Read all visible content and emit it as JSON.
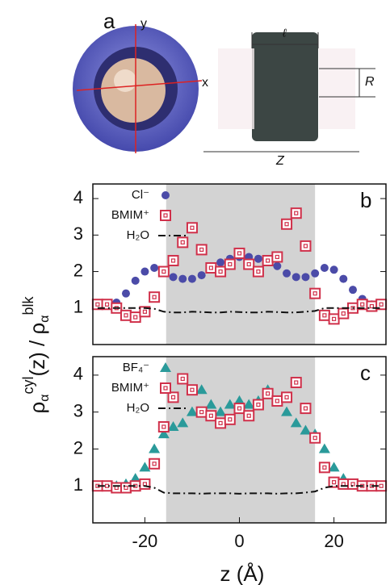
{
  "panel_a": {
    "label": "a",
    "axis_y": "y",
    "axis_x": "x",
    "length": "ℓ",
    "radius": "R",
    "box": "Z"
  },
  "figure": {
    "x_label": "z (Å)",
    "y_label_parts": [
      "ρ",
      "α",
      "cyl",
      "(z) / ",
      "ρ",
      "α",
      "blk"
    ]
  },
  "chart_data": [
    {
      "type": "scatter",
      "panel_label": "b",
      "x": [
        -30,
        -28,
        -26,
        -24,
        -22,
        -20,
        -18,
        -16,
        -14,
        -12,
        -10,
        -8,
        -6,
        -4,
        -2,
        0,
        2,
        4,
        6,
        8,
        10,
        12,
        14,
        16,
        18,
        20,
        22,
        24,
        26,
        28,
        30
      ],
      "xlim": [
        -31,
        31
      ],
      "ylim": [
        0,
        4.4
      ],
      "yticks": [
        1,
        2,
        3,
        4
      ],
      "shade": [
        -15.5,
        16
      ],
      "shade_color": "#d3d3d3",
      "series": [
        {
          "name": "Cl⁻",
          "color": "#4b4ba8",
          "marker": "circle",
          "values": [
            1.1,
            1.1,
            1.15,
            1.4,
            1.75,
            2.0,
            2.1,
            2.0,
            1.85,
            1.8,
            1.8,
            1.9,
            2.1,
            2.25,
            2.35,
            2.4,
            2.4,
            2.35,
            2.3,
            2.15,
            1.95,
            1.85,
            1.85,
            1.95,
            2.1,
            2.05,
            1.8,
            1.5,
            1.25,
            1.1,
            1.1
          ]
        },
        {
          "name": "BMIM⁺",
          "color": "#d0304a",
          "marker": "square",
          "values": [
            1.1,
            1.1,
            1.0,
            0.8,
            0.75,
            0.9,
            1.3,
            2.0,
            2.3,
            2.8,
            3.2,
            2.6,
            2.1,
            2.0,
            2.2,
            2.5,
            2.2,
            2.0,
            2.3,
            2.4,
            3.3,
            3.6,
            2.7,
            1.4,
            0.8,
            0.7,
            0.85,
            1.0,
            1.1,
            1.05,
            1.1
          ]
        },
        {
          "name": "H₂O",
          "color": "#111111",
          "marker": "dashdot",
          "values": [
            1.0,
            1.0,
            1.0,
            1.0,
            1.0,
            1.0,
            0.98,
            0.9,
            0.88,
            0.88,
            0.9,
            0.89,
            0.88,
            0.88,
            0.9,
            0.89,
            0.88,
            0.88,
            0.9,
            0.89,
            0.88,
            0.88,
            0.9,
            0.92,
            1.0,
            1.0,
            1.0,
            1.0,
            1.0,
            1.0,
            1.0
          ]
        }
      ]
    },
    {
      "type": "scatter",
      "panel_label": "c",
      "x": [
        -30,
        -28,
        -26,
        -24,
        -22,
        -20,
        -18,
        -16,
        -14,
        -12,
        -10,
        -8,
        -6,
        -4,
        -2,
        0,
        2,
        4,
        6,
        8,
        10,
        12,
        14,
        16,
        18,
        20,
        22,
        24,
        26,
        28,
        30
      ],
      "xlim": [
        -31,
        31
      ],
      "ylim": [
        0,
        4.5
      ],
      "yticks": [
        1,
        2,
        3,
        4
      ],
      "xticks": [
        -20,
        0,
        20
      ],
      "shade": [
        -15.5,
        16
      ],
      "shade_color": "#d3d3d3",
      "series": [
        {
          "name": "BF₄⁻",
          "color": "#2a9a9a",
          "marker": "triangle",
          "values": [
            1.0,
            1.0,
            1.0,
            1.05,
            1.2,
            1.5,
            2.0,
            2.4,
            2.6,
            2.7,
            3.0,
            3.6,
            3.2,
            3.0,
            3.2,
            3.3,
            3.2,
            3.3,
            3.6,
            3.3,
            3.0,
            2.7,
            2.5,
            2.4,
            2.0,
            1.5,
            1.2,
            1.05,
            1.0,
            1.0,
            1.0
          ]
        },
        {
          "name": "BMIM⁺",
          "color": "#d0304a",
          "marker": "square",
          "values": [
            1.0,
            1.0,
            0.95,
            0.95,
            1.0,
            1.05,
            1.6,
            2.6,
            3.4,
            3.9,
            3.6,
            3.0,
            2.9,
            2.7,
            2.8,
            3.1,
            2.9,
            3.2,
            3.5,
            3.3,
            3.4,
            3.8,
            3.1,
            2.3,
            1.5,
            1.1,
            1.05,
            1.05,
            1.0,
            1.0,
            1.0
          ]
        },
        {
          "name": "H₂O",
          "color": "#111111",
          "marker": "dashdot",
          "values": [
            1.0,
            1.0,
            1.0,
            1.0,
            1.0,
            1.0,
            0.95,
            0.82,
            0.8,
            0.8,
            0.8,
            0.79,
            0.8,
            0.8,
            0.8,
            0.79,
            0.8,
            0.8,
            0.8,
            0.79,
            0.8,
            0.8,
            0.82,
            0.85,
            0.95,
            1.0,
            1.0,
            1.0,
            1.0,
            1.0,
            1.0
          ]
        }
      ]
    }
  ]
}
